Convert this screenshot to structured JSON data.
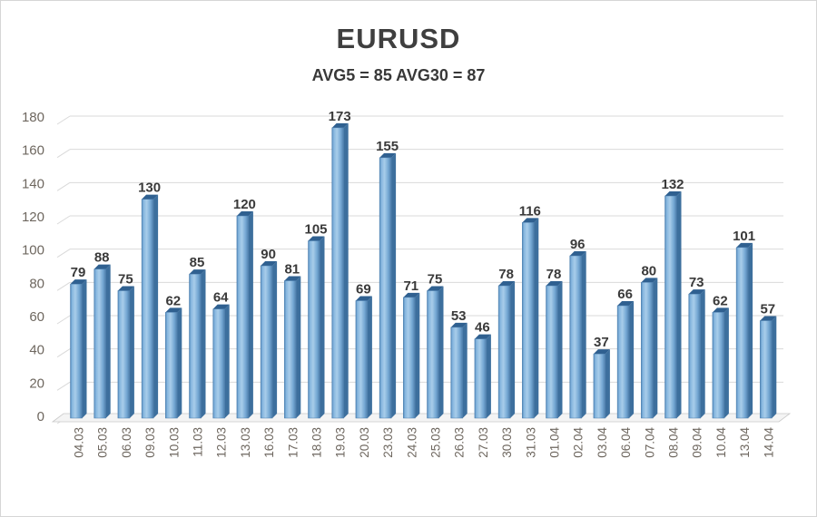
{
  "chart_data": {
    "type": "bar",
    "style": "3d-column",
    "title": "EURUSD",
    "subtitle": "AVG5 = 85 AVG30 = 87",
    "categories": [
      "04.03",
      "05.03",
      "06.03",
      "09.03",
      "10.03",
      "11.03",
      "12.03",
      "13.03",
      "16.03",
      "17.03",
      "18.03",
      "19.03",
      "20.03",
      "23.03",
      "24.03",
      "25.03",
      "26.03",
      "27.03",
      "30.03",
      "31.03",
      "01.04",
      "02.04",
      "03.04",
      "06.04",
      "07.04",
      "08.04",
      "09.04",
      "10.04",
      "13.04",
      "14.04"
    ],
    "values": [
      79,
      88,
      75,
      130,
      62,
      85,
      64,
      120,
      90,
      81,
      105,
      173,
      69,
      155,
      71,
      75,
      53,
      46,
      78,
      116,
      78,
      96,
      37,
      66,
      80,
      132,
      73,
      62,
      101,
      57
    ],
    "ylim": [
      0,
      180
    ],
    "yticks": [
      0,
      20,
      40,
      60,
      80,
      100,
      120,
      140,
      160,
      180
    ],
    "grid": true,
    "legend": "none",
    "data_labels": true,
    "xlabel": "",
    "ylabel": "",
    "colors": {
      "bar_gradient": [
        "#4f86b8",
        "#85b5de",
        "#a8cdea",
        "#74a7d3",
        "#4c7ca9"
      ],
      "bar_gradient_pos": [
        0,
        0.14,
        0.42,
        0.75,
        1
      ],
      "bar_outline": "#4a7dac",
      "bar_side": "#3d6f9d",
      "bar_top": "#2f6090",
      "gridline": "#d9d9d9",
      "floor_fill": "#f4f4f4",
      "floor_edge": "#c9c9c9",
      "axis_label": "#6e675f",
      "value_label": "#3a3a3a",
      "title": "#3f3f3f"
    }
  }
}
